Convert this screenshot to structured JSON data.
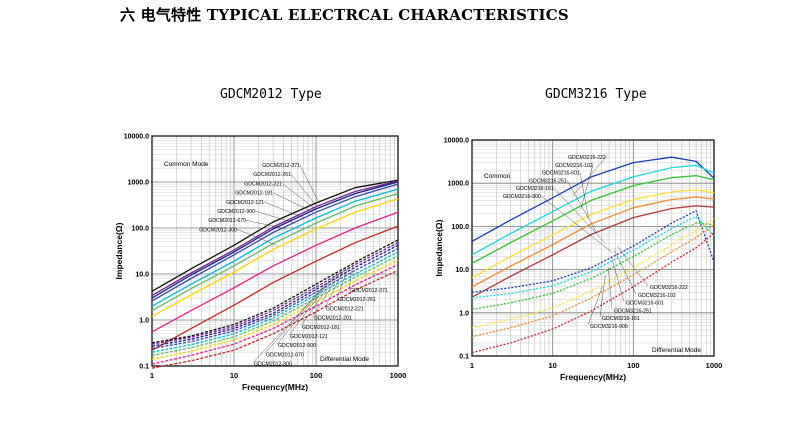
{
  "page": {
    "heading": "六  电气特性 TYPICAL ELECTRCAL CHARACTERISTICS"
  },
  "chart_data": [
    {
      "type": "line",
      "title": "GDCM2012 Type",
      "xlabel": "Frequency(MHz)",
      "ylabel": "Impedance(Ω)",
      "xscale": "log",
      "yscale": "log",
      "xlim": [
        1,
        1000
      ],
      "ylim": [
        0.1,
        10000
      ],
      "x_ticks": [
        "1",
        "10",
        "100",
        "1000"
      ],
      "y_ticks": [
        "0.1",
        "1.0",
        "10.0",
        "100.0",
        "1000.0",
        "10000.0"
      ],
      "grid": true,
      "mode_labels": {
        "common": "Common Mode",
        "differential": "Differential Mode"
      },
      "x": [
        1,
        3,
        10,
        30,
        100,
        300,
        1000
      ],
      "series": [
        {
          "name": "GDCM2012-371",
          "mode": "common",
          "color": "#111111",
          "values": [
            4.2,
            13,
            42,
            135,
            350,
            750,
            1100
          ]
        },
        {
          "name": "GDCM2012-261",
          "mode": "common",
          "color": "#7b1fa2",
          "values": [
            3.4,
            10.5,
            33,
            105,
            290,
            620,
            1050
          ]
        },
        {
          "name": "GDCM2012-221",
          "mode": "common",
          "color": "#1a237e",
          "values": [
            3.0,
            9.5,
            30,
            95,
            260,
            560,
            1000
          ]
        },
        {
          "name": "GDCM2012-181",
          "mode": "common",
          "color": "#3949ab",
          "values": [
            2.6,
            8,
            26,
            80,
            220,
            480,
            900
          ]
        },
        {
          "name": "GDCM2012-121",
          "mode": "common",
          "color": "#00bcd4",
          "values": [
            2.0,
            6,
            19,
            60,
            165,
            380,
            700
          ]
        },
        {
          "name": "GDCM2012-900",
          "mode": "common",
          "color": "#66bb6a",
          "values": [
            1.6,
            4.8,
            15,
            46,
            128,
            300,
            560
          ]
        },
        {
          "name": "GDCM2012-670",
          "mode": "common",
          "color": "#ffd600",
          "values": [
            1.2,
            3.5,
            11,
            34,
            95,
            220,
            430
          ]
        },
        {
          "name": "GDCM2012-300",
          "mode": "common",
          "color": "#e91e8c",
          "values": [
            0.55,
            1.6,
            5,
            15,
            42,
            100,
            220
          ]
        },
        {
          "name": "",
          "mode": "common",
          "color": "#c62828",
          "values": [
            0.22,
            0.65,
            2.1,
            6.5,
            19,
            48,
            110
          ]
        },
        {
          "name": "GDCM2012-371",
          "mode": "differential",
          "color": "#111111",
          "values": [
            0.32,
            0.45,
            0.8,
            1.8,
            6,
            18,
            55
          ]
        },
        {
          "name": "GDCM2012-261",
          "mode": "differential",
          "color": "#7b1fa2",
          "values": [
            0.3,
            0.42,
            0.72,
            1.6,
            5.2,
            16,
            48
          ]
        },
        {
          "name": "GDCM2012-221",
          "mode": "differential",
          "color": "#1a237e",
          "values": [
            0.27,
            0.38,
            0.65,
            1.4,
            4.6,
            14,
            42
          ]
        },
        {
          "name": "GDCM2012-201",
          "mode": "differential",
          "color": "#3949ab",
          "values": [
            0.24,
            0.34,
            0.58,
            1.25,
            4,
            12,
            36
          ]
        },
        {
          "name": "GDCM2012-181",
          "mode": "differential",
          "color": "#00bcd4",
          "values": [
            0.2,
            0.29,
            0.5,
            1.1,
            3.5,
            10,
            30
          ]
        },
        {
          "name": "GDCM2012-121",
          "mode": "differential",
          "color": "#66bb6a",
          "values": [
            0.17,
            0.25,
            0.43,
            0.95,
            3,
            8.5,
            25
          ]
        },
        {
          "name": "GDCM2012-900",
          "mode": "differential",
          "color": "#ffd600",
          "values": [
            0.14,
            0.21,
            0.37,
            0.8,
            2.5,
            7,
            20
          ]
        },
        {
          "name": "GDCM2012-670",
          "mode": "differential",
          "color": "#e91e8c",
          "values": [
            0.11,
            0.17,
            0.3,
            0.65,
            2,
            5.8,
            16
          ]
        },
        {
          "name": "GDCM2012-300",
          "mode": "differential",
          "color": "#c62828",
          "values": [
            0.09,
            0.13,
            0.22,
            0.5,
            1.5,
            4.5,
            12
          ]
        }
      ]
    },
    {
      "type": "line",
      "title": "GDCM3216 Type",
      "xlabel": "Frequency(MHz)",
      "ylabel": "Impedance(Ω)",
      "xscale": "log",
      "yscale": "log",
      "xlim": [
        1,
        1000
      ],
      "ylim": [
        0.1,
        10000
      ],
      "x_ticks": [
        "1",
        "10",
        "100",
        "1000"
      ],
      "y_ticks": [
        "0.1",
        "1.0",
        "10.0",
        "100.0",
        "1000.0",
        "10000.0"
      ],
      "grid": true,
      "mode_labels": {
        "common": "Common",
        "differential": "Differential Mode"
      },
      "x": [
        1,
        3,
        10,
        30,
        100,
        300,
        600,
        1000
      ],
      "series": [
        {
          "name": "GDCM3216-222",
          "mode": "common",
          "color": "#1a3fb5",
          "values": [
            45,
            140,
            460,
            1400,
            3000,
            4000,
            3200,
            1300
          ]
        },
        {
          "name": "GDCM3216-102",
          "mode": "common",
          "color": "#18d8e0",
          "values": [
            22,
            68,
            220,
            650,
            1400,
            2300,
            2600,
            1700
          ]
        },
        {
          "name": "GDCM3216-601",
          "mode": "common",
          "color": "#2ec52e",
          "values": [
            14,
            42,
            135,
            400,
            880,
            1350,
            1500,
            1200
          ]
        },
        {
          "name": "GDCM3216-251",
          "mode": "common",
          "color": "#ffe033",
          "values": [
            6.5,
            20,
            64,
            190,
            420,
            630,
            700,
            600
          ]
        },
        {
          "name": "GDCM3216-161",
          "mode": "common",
          "color": "#f28a2e",
          "values": [
            4,
            12,
            38,
            115,
            270,
            420,
            480,
            430
          ]
        },
        {
          "name": "GDCM3216-900",
          "mode": "common",
          "color": "#b03a3a",
          "values": [
            2.3,
            7,
            22,
            65,
            160,
            260,
            300,
            280
          ]
        },
        {
          "name": "GDCM3216-222",
          "mode": "differential",
          "color": "#1a3fb5",
          "values": [
            3,
            3.8,
            5.5,
            11,
            35,
            120,
            230,
            15
          ]
        },
        {
          "name": "GDCM3216-102",
          "mode": "differential",
          "color": "#18d8e0",
          "values": [
            2.2,
            2.8,
            4.2,
            9,
            28,
            90,
            170,
            60
          ]
        },
        {
          "name": "GDCM3216-601",
          "mode": "differential",
          "color": "#2ec52e",
          "values": [
            1.2,
            1.7,
            2.8,
            6.2,
            20,
            65,
            120,
            110
          ]
        },
        {
          "name": "GDCM3216-251",
          "mode": "differential",
          "color": "#ffe033",
          "values": [
            0.45,
            0.7,
            1.3,
            3.2,
            11,
            38,
            80,
            150
          ]
        },
        {
          "name": "GDCM3216-161",
          "mode": "differential",
          "color": "#f28a2e",
          "values": [
            0.28,
            0.45,
            0.85,
            2.2,
            7.5,
            26,
            55,
            110
          ]
        },
        {
          "name": "GDCM3216-900",
          "mode": "differential",
          "color": "#c62828",
          "values": [
            0.12,
            0.2,
            0.42,
            1.1,
            4,
            15,
            32,
            70
          ]
        }
      ]
    }
  ]
}
